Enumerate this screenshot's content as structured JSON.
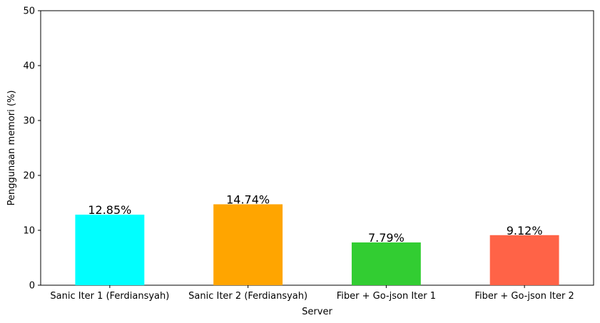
{
  "chart_data": {
    "type": "bar",
    "title": "",
    "xlabel": "Server",
    "ylabel": "Penggunaan memori (%)",
    "ylim": [
      0,
      50
    ],
    "yticks": [
      0,
      10,
      20,
      30,
      40,
      50
    ],
    "categories": [
      "Sanic Iter 1 (Ferdiansyah)",
      "Sanic Iter 2 (Ferdiansyah)",
      "Fiber + Go-json Iter 1",
      "Fiber + Go-json Iter 2"
    ],
    "values": [
      12.85,
      14.74,
      7.79,
      9.12
    ],
    "value_labels": [
      "12.85%",
      "14.74%",
      "7.79%",
      "9.12%"
    ],
    "colors": [
      "#00ffff",
      "#ffa500",
      "#32cd32",
      "#ff6347"
    ],
    "grid": false,
    "legend": "none"
  }
}
